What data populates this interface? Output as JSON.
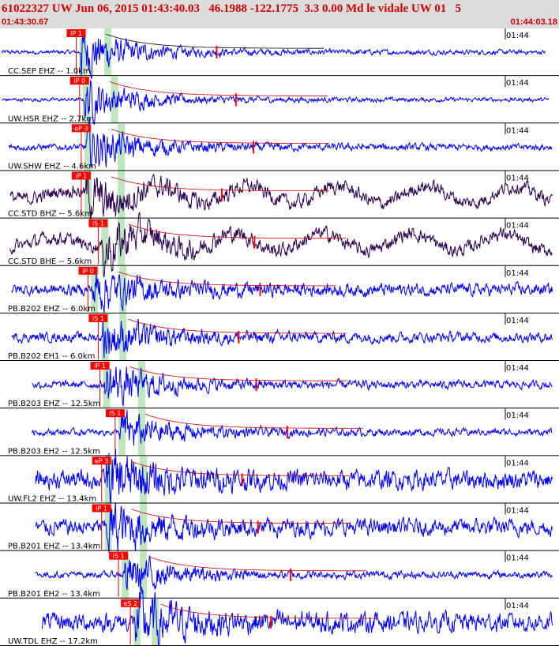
{
  "header": {
    "title": "61022327 UW Jun 06, 2015 01:43:40.03   46.1988 -122.1775  3.3 0.00 Md le vidale UW 01   5",
    "time_start": "01:43:30.67",
    "time_end": "01:44:03.18"
  },
  "colors": {
    "header_bg": "#dcdcdc",
    "header_text": "#cc0000",
    "trace_blue": "#0000ff",
    "trace_dark": "#2a0050",
    "pick": "#ff0000",
    "window": "#bfe6bf"
  },
  "time_window": [
    0,
    32.51
  ],
  "minute_label": "01:44",
  "traces": [
    {
      "label": "CC.SEP EHZ -- 1.0km",
      "pick": "iP 1",
      "pick_t": 4.4,
      "s_t": 5.4,
      "color": "#0000ff",
      "amp": 0.9,
      "noise": 0.08,
      "start_t": 0.0,
      "end_t": 32.1
    },
    {
      "label": "UW.HSR EHZ -- 2.7km",
      "pick": "iP 0",
      "pick_t": 4.6,
      "s_t": 5.8,
      "color": "#0000ff",
      "amp": 0.75,
      "noise": 0.07,
      "start_t": 0.0,
      "end_t": 32.3
    },
    {
      "label": "UW.SHW EHZ -- 4.6km",
      "pick": "eP 3",
      "pick_t": 4.7,
      "s_t": 6.2,
      "color": "#0000ff",
      "amp": 0.8,
      "noise": 0.12,
      "start_t": 0.4,
      "end_t": 32.6
    },
    {
      "label": "CC.STD BHZ -- 5.6km",
      "pick": "iP 1",
      "pick_t": 4.7,
      "s_t": 6.2,
      "color": "#2a0050",
      "amp": 0.7,
      "noise": 0.25,
      "start_t": 0.5,
      "end_t": 32.7
    },
    {
      "label": "CC.STD BHE -- 5.6km",
      "pick": "iS 1",
      "pick_t": 5.7,
      "s_t": 6.2,
      "color": "#2a0050",
      "amp": 0.75,
      "noise": 0.25,
      "start_t": 0.5,
      "end_t": 32.7
    },
    {
      "label": "PB.B202 EHZ -- 6.0km",
      "pick": "iP 0",
      "pick_t": 5.1,
      "s_t": 6.3,
      "color": "#0000ff",
      "amp": 0.7,
      "noise": 0.22,
      "start_t": 0.6,
      "end_t": 32.7
    },
    {
      "label": "PB.B202 EH1 -- 6.0km",
      "pick": "iS 1",
      "pick_t": 5.7,
      "s_t": 6.3,
      "color": "#0000ff",
      "amp": 0.7,
      "noise": 0.18,
      "start_t": 0.6,
      "end_t": 32.7
    },
    {
      "label": "PB.B203 EHZ -- 12.5km",
      "pick": "iP 1",
      "pick_t": 5.8,
      "s_t": 7.4,
      "color": "#0000ff",
      "amp": 0.8,
      "noise": 0.14,
      "start_t": 1.8,
      "end_t": 33.9
    },
    {
      "label": "PB.B203 EH2 -- 12.5km",
      "pick": "iS 1",
      "pick_t": 6.7,
      "s_t": 7.4,
      "color": "#0000ff",
      "amp": 0.7,
      "noise": 0.12,
      "start_t": 1.8,
      "end_t": 33.9
    },
    {
      "label": "UW.FL2 EHZ -- 13.4km",
      "pick": "eP 3",
      "pick_t": 5.9,
      "s_t": 7.5,
      "color": "#0000ff",
      "amp": 0.9,
      "noise": 0.35,
      "start_t": 2.0,
      "end_t": 34.0
    },
    {
      "label": "PB.B201 EHZ -- 13.4km",
      "pick": "iP 1",
      "pick_t": 5.9,
      "s_t": 7.5,
      "color": "#0000ff",
      "amp": 0.85,
      "noise": 0.3,
      "start_t": 2.0,
      "end_t": 34.0
    },
    {
      "label": "PB.B201 EH2 -- 13.4km",
      "pick": "iS 1",
      "pick_t": 6.9,
      "s_t": 7.5,
      "color": "#0000ff",
      "amp": 0.7,
      "noise": 0.12,
      "start_t": 2.0,
      "end_t": 34.0
    },
    {
      "label": "UW.TDL EHZ -- 17.2km",
      "pick": "eS 2",
      "pick_t": 7.6,
      "s_t": 8.2,
      "color": "#0000ff",
      "amp": 0.9,
      "noise": 0.35,
      "start_t": 2.4,
      "end_t": 34.5
    }
  ]
}
